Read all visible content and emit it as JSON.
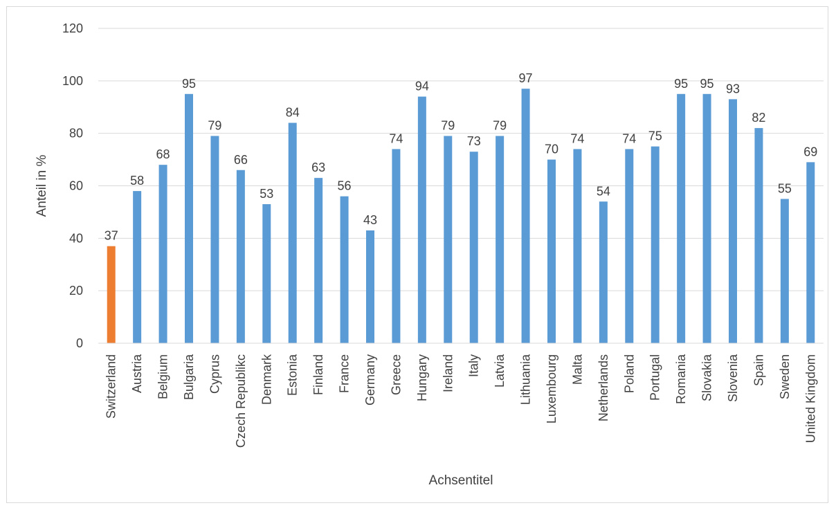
{
  "chart_data": {
    "type": "bar",
    "categories": [
      "Switzerland",
      "Austria",
      "Belgium",
      "Bulgaria",
      "Cyprus",
      "Czech Republikc",
      "Denmark",
      "Estonia",
      "Finland",
      "France",
      "Germany",
      "Greece",
      "Hungary",
      "Ireland",
      "Italy",
      "Latvia",
      "Lithuania",
      "Luxembourg",
      "Malta",
      "Netherlands",
      "Poland",
      "Portugal",
      "Romania",
      "Slovakia",
      "Slovenia",
      "Spain",
      "Sweden",
      "United Kingdom"
    ],
    "values": [
      37,
      58,
      68,
      95,
      79,
      66,
      53,
      84,
      63,
      56,
      43,
      74,
      94,
      79,
      73,
      79,
      97,
      70,
      74,
      54,
      74,
      75,
      95,
      95,
      93,
      82,
      55,
      69
    ],
    "colors": [
      "#ed7d31",
      "#5b9bd5",
      "#5b9bd5",
      "#5b9bd5",
      "#5b9bd5",
      "#5b9bd5",
      "#5b9bd5",
      "#5b9bd5",
      "#5b9bd5",
      "#5b9bd5",
      "#5b9bd5",
      "#5b9bd5",
      "#5b9bd5",
      "#5b9bd5",
      "#5b9bd5",
      "#5b9bd5",
      "#5b9bd5",
      "#5b9bd5",
      "#5b9bd5",
      "#5b9bd5",
      "#5b9bd5",
      "#5b9bd5",
      "#5b9bd5",
      "#5b9bd5",
      "#5b9bd5",
      "#5b9bd5",
      "#5b9bd5",
      "#5b9bd5"
    ],
    "xlabel": "Achsentitel",
    "ylabel": "Anteil in %",
    "ylim": [
      0,
      120
    ],
    "yticks": [
      0,
      20,
      40,
      60,
      80,
      100,
      120
    ],
    "grid": true,
    "data_labels": true
  }
}
